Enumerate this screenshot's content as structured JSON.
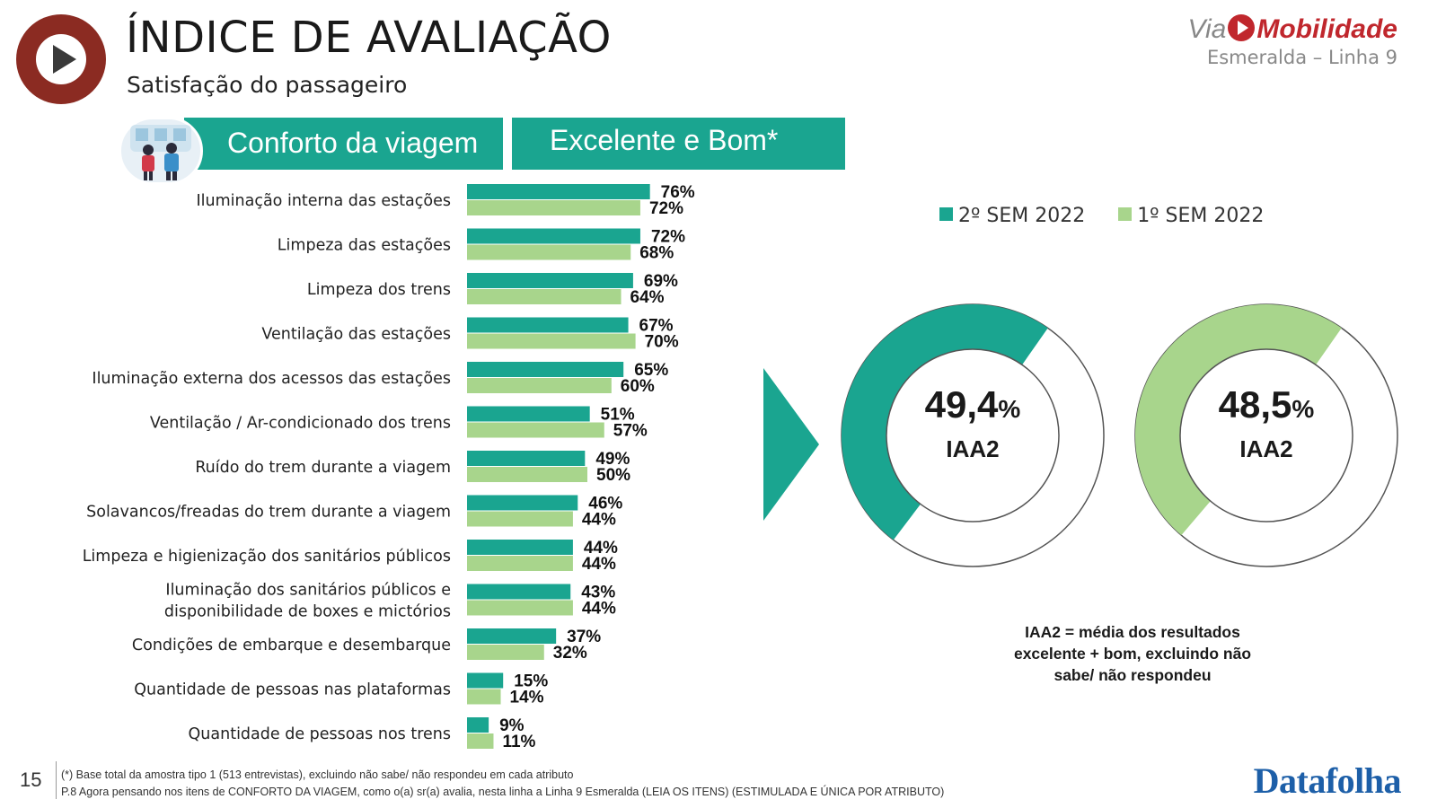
{
  "header": {
    "title": "ÍNDICE DE AVALIAÇÃO",
    "subtitle": "Satisfação do passageiro",
    "brand_via": "Via",
    "brand_name": "Mobilidade",
    "brand_line": "Esmeralda – Linha 9"
  },
  "section": {
    "category": "Conforto da viagem",
    "metric": "Excelente e Bom*"
  },
  "legend": [
    {
      "label": "2º SEM 2022",
      "color": "#1aa590"
    },
    {
      "label": "1º SEM 2022",
      "color": "#a8d58c"
    }
  ],
  "chart_data": {
    "type": "bar",
    "orientation": "horizontal",
    "categories": [
      [
        "Iluminação interna das estações"
      ],
      [
        "Limpeza das estações"
      ],
      [
        "Limpeza dos trens"
      ],
      [
        "Ventilação das estações"
      ],
      [
        "Iluminação externa dos acessos das estações"
      ],
      [
        "Ventilação / Ar-condicionado dos trens"
      ],
      [
        "Ruído do trem durante a viagem"
      ],
      [
        "Solavancos/freadas do trem durante a viagem"
      ],
      [
        "Limpeza e higienização dos sanitários públicos"
      ],
      [
        "Iluminação dos sanitários públicos e",
        "disponibilidade de boxes e mictórios"
      ],
      [
        "Condições de embarque e desembarque"
      ],
      [
        "Quantidade de pessoas nas plataformas"
      ],
      [
        "Quantidade de pessoas nos trens"
      ]
    ],
    "series": [
      {
        "name": "2º SEM 2022",
        "color": "#1aa590",
        "values": [
          76,
          72,
          69,
          67,
          65,
          51,
          49,
          46,
          44,
          43,
          37,
          15,
          9
        ]
      },
      {
        "name": "1º SEM 2022",
        "color": "#a8d58c",
        "values": [
          72,
          68,
          64,
          70,
          60,
          57,
          50,
          44,
          44,
          44,
          32,
          14,
          11
        ]
      }
    ],
    "value_suffix": "%",
    "xlim": [
      0,
      100
    ]
  },
  "donuts": [
    {
      "value": 49.4,
      "value_text": "49,4",
      "pct": "%",
      "label": "IAA2",
      "color": "#1aa590"
    },
    {
      "value": 48.5,
      "value_text": "48,5",
      "pct": "%",
      "label": "IAA2",
      "color": "#a8d58c"
    }
  ],
  "note": {
    "line1": "IAA2 = média dos resultados",
    "line2": "excelente + bom, excluindo não",
    "line3": "sabe/ não respondeu"
  },
  "footer": {
    "page": "15",
    "note1": "(*) Base total da amostra tipo 1 (513 entrevistas), excluindo não sabe/ não respondeu em cada atributo",
    "note2": "P.8 Agora pensando nos itens de CONFORTO DA VIAGEM, como o(a) sr(a) avalia, nesta linha a Linha 9 Esmeralda (LEIA OS ITENS) (ESTIMULADA E ÚNICA POR ATRIBUTO)",
    "source": "Datafolha"
  }
}
